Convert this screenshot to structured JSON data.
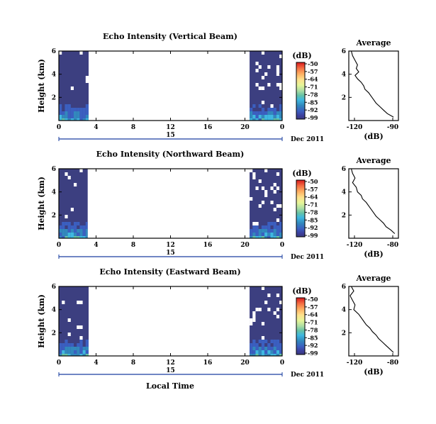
{
  "figure": {
    "date_label": "Dec 2011",
    "day_label": "15",
    "xlabel": "Local Time",
    "colorbar_unit": "(dB)",
    "colorbar_ticks": [
      "-50",
      "-57",
      "-64",
      "-71",
      "-78",
      "-85",
      "-92",
      "-99"
    ],
    "colorbar_colors": [
      "#d7191c",
      "#f46d43",
      "#fdae61",
      "#fee08b",
      "#e6f598",
      "#abdda4",
      "#66c2a5",
      "#3fb8e0",
      "#3288bd",
      "#3b5fc0",
      "#3d3f9c",
      "#3a3a7a"
    ],
    "nodata_color": "#ffffff",
    "data_color": "#3c3f80"
  },
  "chart_data": [
    {
      "type": "heatmap",
      "title": "Echo Intensity (Vertical Beam)",
      "ylabel": "Height (km)",
      "x_ticks": [
        "0",
        "4",
        "8",
        "12",
        "16",
        "20",
        "0"
      ],
      "y_ticks": [
        "6",
        "4",
        "2"
      ],
      "xlim": [
        0,
        24
      ],
      "ylim": [
        0,
        6
      ],
      "data_intervals_hours": [
        [
          0,
          3.2
        ],
        [
          20.5,
          24
        ]
      ],
      "zlim_db": [
        -99,
        -50
      ]
    },
    {
      "type": "line",
      "title": "Average",
      "xlabel": "(dB)",
      "x_ticks": [
        "-120",
        "-90"
      ],
      "y_ticks": [
        "6",
        "4",
        "2"
      ],
      "xlim": [
        -120,
        -80
      ],
      "ylim": [
        0,
        6
      ],
      "profile": {
        "height_km": [
          6.0,
          5.6,
          5.2,
          4.8,
          4.5,
          4.2,
          3.9,
          3.6,
          3.3,
          3.0,
          2.7,
          2.4,
          2.1,
          1.8,
          1.5,
          1.2,
          0.9,
          0.6,
          0.3
        ],
        "db": [
          -118,
          -117,
          -115,
          -113,
          -114,
          -112,
          -115,
          -113,
          -110,
          -108,
          -107,
          -104,
          -102,
          -100,
          -98,
          -95,
          -92,
          -89,
          -84
        ]
      }
    },
    {
      "type": "heatmap",
      "title": "Echo Intensity (Northward Beam)",
      "ylabel": "Height (km)",
      "x_ticks": [
        "0",
        "4",
        "8",
        "12",
        "16",
        "20",
        "0"
      ],
      "y_ticks": [
        "6",
        "4",
        "2"
      ],
      "xlim": [
        0,
        24
      ],
      "ylim": [
        0,
        6
      ],
      "data_intervals_hours": [
        [
          0,
          3.1
        ],
        [
          20.5,
          24
        ]
      ],
      "zlim_db": [
        -99,
        -50
      ]
    },
    {
      "type": "line",
      "title": "Average",
      "xlabel": "(dB)",
      "x_ticks": [
        "-120",
        "-80"
      ],
      "y_ticks": [
        "6",
        "4",
        "2"
      ],
      "xlim": [
        -120,
        -80
      ],
      "ylim": [
        0,
        6
      ],
      "profile": {
        "height_km": [
          6.0,
          5.6,
          5.2,
          4.8,
          4.4,
          4.0,
          3.7,
          3.4,
          3.1,
          2.8,
          2.5,
          2.2,
          1.9,
          1.6,
          1.3,
          1.0,
          0.7,
          0.4
        ],
        "db": [
          -118,
          -117,
          -115,
          -117,
          -114,
          -113,
          -110,
          -109,
          -106,
          -104,
          -102,
          -100,
          -98,
          -95,
          -92,
          -90,
          -86,
          -83
        ]
      }
    },
    {
      "type": "heatmap",
      "title": "Echo Intensity (Eastward Beam)",
      "ylabel": "Height (km)",
      "x_ticks": [
        "0",
        "4",
        "8",
        "12",
        "16",
        "20",
        "0"
      ],
      "y_ticks": [
        "6",
        "4",
        "2"
      ],
      "xlim": [
        0,
        24
      ],
      "ylim": [
        0,
        6
      ],
      "data_intervals_hours": [
        [
          0,
          3.2
        ],
        [
          20.5,
          24
        ]
      ],
      "zlim_db": [
        -99,
        -50
      ]
    },
    {
      "type": "line",
      "title": "Average",
      "xlabel": "(dB)",
      "x_ticks": [
        "-120",
        "-80"
      ],
      "y_ticks": [
        "6",
        "4",
        "2"
      ],
      "xlim": [
        -120,
        -80
      ],
      "ylim": [
        0,
        6
      ],
      "profile": {
        "height_km": [
          6.0,
          5.6,
          5.2,
          4.8,
          4.4,
          4.0,
          3.6,
          3.3,
          3.0,
          2.7,
          2.4,
          2.1,
          1.8,
          1.5,
          1.2,
          0.9,
          0.6,
          0.3
        ],
        "db": [
          -118,
          -116,
          -119,
          -117,
          -115,
          -116,
          -112,
          -110,
          -108,
          -106,
          -103,
          -101,
          -98,
          -96,
          -93,
          -90,
          -87,
          -84
        ]
      }
    }
  ]
}
